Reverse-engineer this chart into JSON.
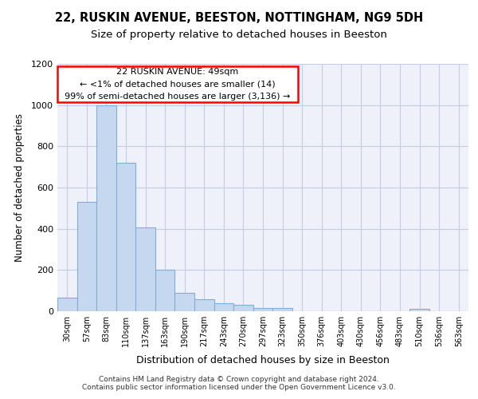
{
  "title_line1": "22, RUSKIN AVENUE, BEESTON, NOTTINGHAM, NG9 5DH",
  "title_line2": "Size of property relative to detached houses in Beeston",
  "xlabel": "Distribution of detached houses by size in Beeston",
  "ylabel": "Number of detached properties",
  "categories": [
    "30sqm",
    "57sqm",
    "83sqm",
    "110sqm",
    "137sqm",
    "163sqm",
    "190sqm",
    "217sqm",
    "243sqm",
    "270sqm",
    "297sqm",
    "323sqm",
    "350sqm",
    "376sqm",
    "403sqm",
    "430sqm",
    "456sqm",
    "483sqm",
    "510sqm",
    "536sqm",
    "563sqm"
  ],
  "values": [
    65,
    530,
    1000,
    720,
    405,
    200,
    90,
    60,
    40,
    30,
    15,
    15,
    0,
    0,
    0,
    0,
    0,
    0,
    10,
    0,
    0
  ],
  "bar_color": "#c5d8f0",
  "bar_edge_color": "#7fafd4",
  "annotation_lines": [
    "22 RUSKIN AVENUE: 49sqm",
    "← <1% of detached houses are smaller (14)",
    "99% of semi-detached houses are larger (3,136) →"
  ],
  "ylim": [
    0,
    1200
  ],
  "yticks": [
    0,
    200,
    400,
    600,
    800,
    1000,
    1200
  ],
  "footer_text": "Contains HM Land Registry data © Crown copyright and database right 2024.\nContains public sector information licensed under the Open Government Licence v3.0.",
  "bg_color": "#eef0fa",
  "grid_color": "#c8cce0"
}
